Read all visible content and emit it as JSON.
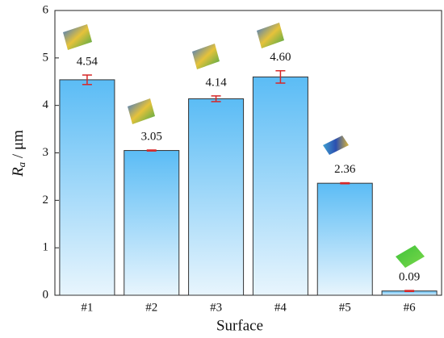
{
  "chart_data": {
    "type": "bar",
    "x_label": "Surface",
    "y_label": {
      "symbol": "R",
      "subscript": "a",
      "unit": " / μm"
    },
    "categories": [
      "#1",
      "#2",
      "#3",
      "#4",
      "#5",
      "#6"
    ],
    "values": [
      4.54,
      3.05,
      4.14,
      4.6,
      2.36,
      0.09
    ],
    "value_labels": [
      "4.54",
      "3.05",
      "4.14",
      "4.60",
      "2.36",
      "0.09"
    ],
    "errors": [
      0.1,
      0.01,
      0.06,
      0.13,
      0.01,
      0.01
    ],
    "color": "#5bbcf5",
    "error_color": "#d62728",
    "ylim": [
      0,
      6
    ],
    "yticks": [
      0,
      1,
      2,
      3,
      4,
      5,
      6
    ]
  }
}
